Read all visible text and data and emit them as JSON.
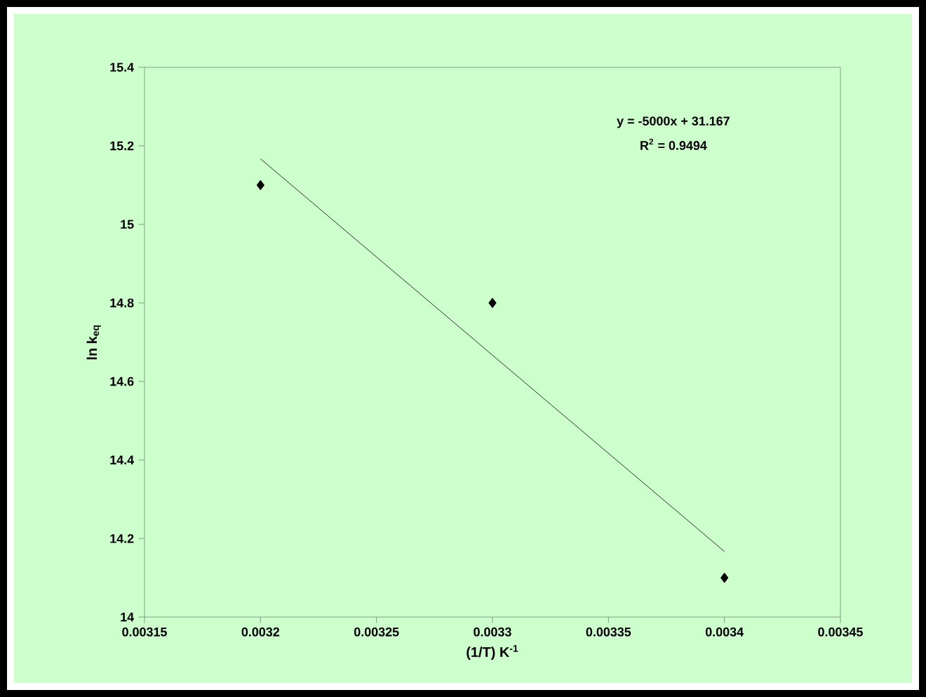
{
  "chart_data": {
    "type": "scatter",
    "xlabel": "(1/T) K$^{-1}$",
    "ylabel": "ln k$_{eq}$",
    "annotations": [
      "y = -5000x + 31.167",
      "R$^{2}$ = 0.9494"
    ],
    "xlim": [
      0.00315,
      0.00345
    ],
    "xticks": [
      0.00315,
      0.0032,
      0.00325,
      0.0033,
      0.00335,
      0.0034,
      0.00345
    ],
    "ylim": [
      14,
      15.4
    ],
    "yticks": [
      14,
      14.2,
      14.4,
      14.6,
      14.8,
      15,
      15.2,
      15.4
    ],
    "grid": false,
    "marker": "diamond",
    "series": [
      {
        "type": "scatter",
        "color": "#000000",
        "x": [
          0.0032,
          0.0033,
          0.0034
        ],
        "values": [
          15.1,
          14.8,
          14.1
        ]
      },
      {
        "type": "line",
        "color": "#000000",
        "marker": "none",
        "x": [
          0.0032,
          0.0034
        ],
        "values": [
          15.167,
          14.167
        ]
      }
    ]
  }
}
